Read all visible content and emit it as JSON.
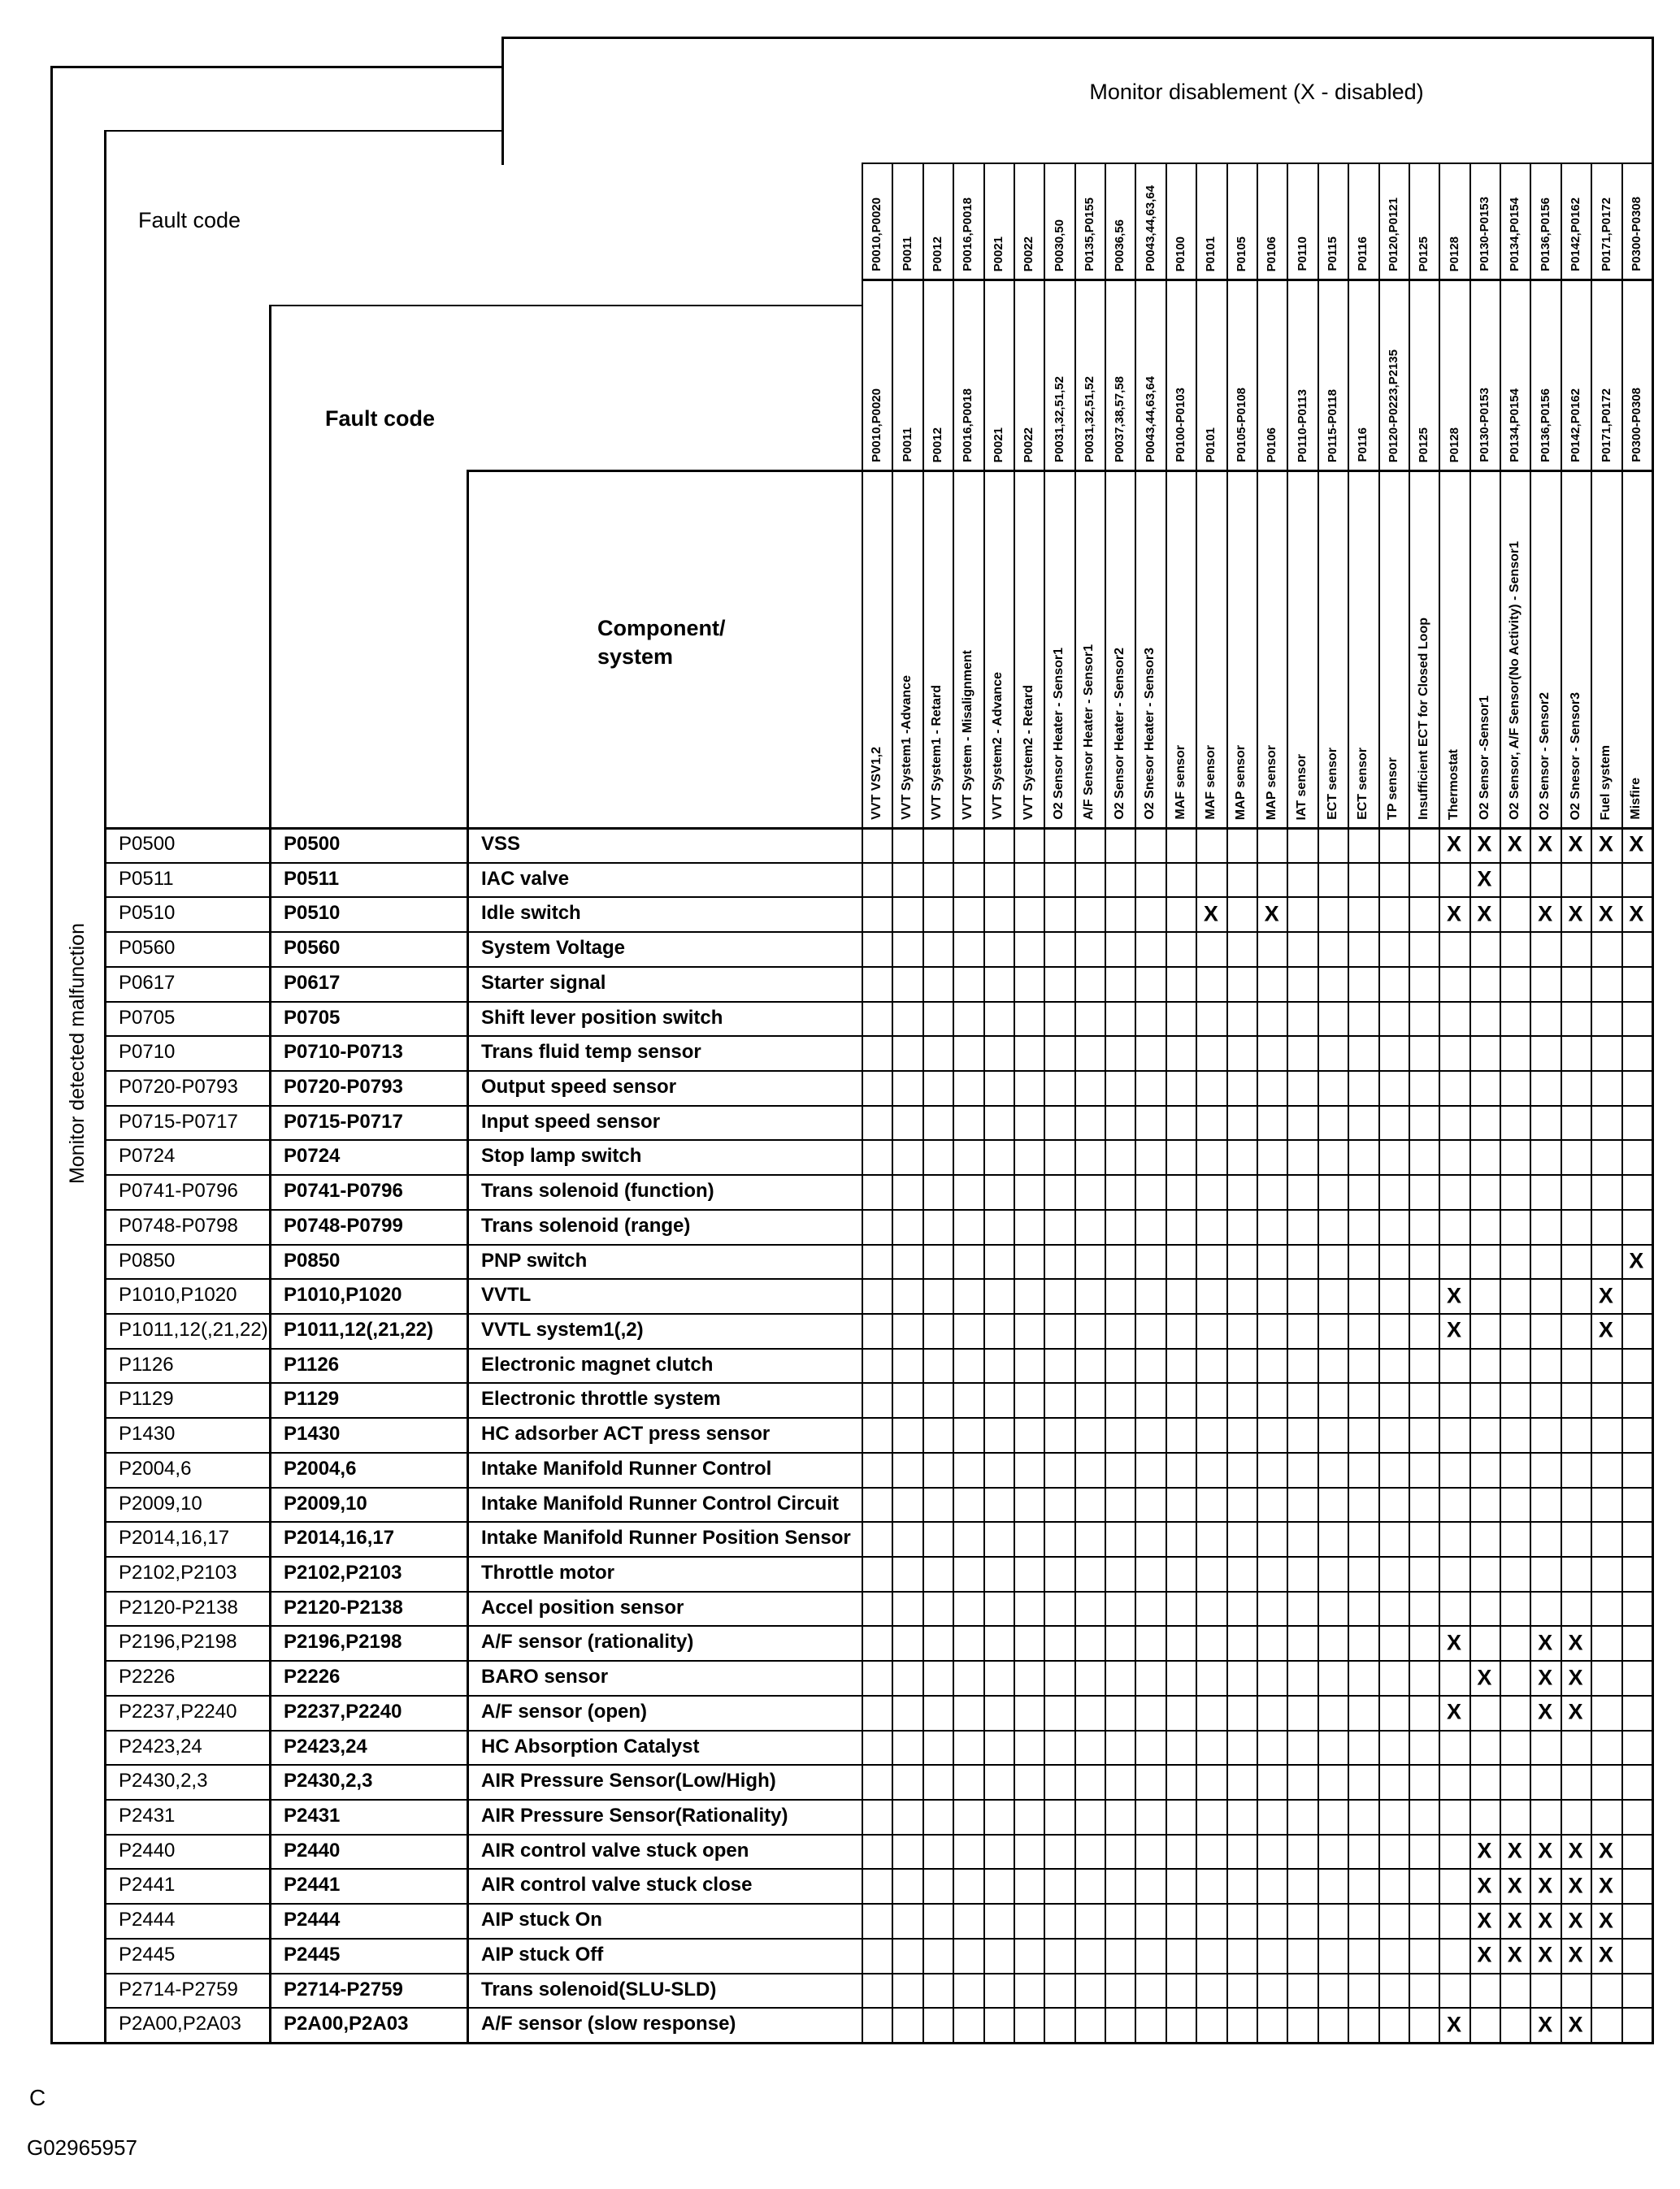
{
  "header": {
    "monitor_title": "Monitor disablement (X - disabled)",
    "fault_code_label_1": "Fault code",
    "fault_code_label_2": "Fault code",
    "component_label_line1": "Component/",
    "component_label_line2": "system",
    "side_label": "Monitor detected malfunction"
  },
  "x_symbol": "X",
  "columns": {
    "codes_row1": [
      "P0010,P0020",
      "P0011",
      "P0012",
      "P0016,P0018",
      "P0021",
      "P0022",
      "P0030,50",
      "P0135,P0155",
      "P0036,56",
      "P0043,44,63,64",
      "P0100",
      "P0101",
      "P0105",
      "P0106",
      "P0110",
      "P0115",
      "P0116",
      "P0120,P0121",
      "P0125",
      "P0128",
      "P0130-P0153",
      "P0134,P0154",
      "P0136,P0156",
      "P0142,P0162",
      "P0171,P0172",
      "P0300-P0308"
    ],
    "codes_row2": [
      "P0010,P0020",
      "P0011",
      "P0012",
      "P0016,P0018",
      "P0021",
      "P0022",
      "P0031,32,51,52",
      "P0031,32,51,52",
      "P0037,38,57,58",
      "P0043,44,63,64",
      "P0100-P0103",
      "P0101",
      "P0105-P0108",
      "P0106",
      "P0110-P0113",
      "P0115-P0118",
      "P0116",
      "P0120-P0223,P2135",
      "P0125",
      "P0128",
      "P0130-P0153",
      "P0134,P0154",
      "P0136,P0156",
      "P0142,P0162",
      "P0171,P0172",
      "P0300-P0308"
    ],
    "components": [
      "VVT VSV1,2",
      "VVT System1 -Advance",
      "VVT System1 - Retard",
      "VVT System - Misalignment",
      "VVT System2 - Advance",
      "VVT System2 - Retard",
      "O2 Sensor  Heater - Sensor1",
      "A/F Sensor Heater - Sensor1",
      "O2 Sensor Heater - Sensor2",
      "O2 Snesor Heater - Sensor3",
      "MAF sensor",
      "MAF sensor",
      "MAP sensor",
      "MAP sensor",
      "IAT sensor",
      "ECT sensor",
      "ECT sensor",
      "TP sensor",
      "Insufficient ECT for Closed Loop",
      "Thermostat",
      "O2 Sensor -Sensor1",
      "O2 Sensor, A/F Sensor(No Activity) - Sensor1",
      "O2 Sensor - Sensor2",
      "O2 Snesor - Sensor3",
      "Fuel system",
      "Misfire"
    ]
  },
  "rows": [
    {
      "code1": "P0500",
      "code2": "P0500",
      "component": "VSS",
      "x_cols": [
        20,
        21,
        22,
        23,
        24,
        25,
        26
      ]
    },
    {
      "code1": "P0511",
      "code2": "P0511",
      "component": "IAC valve",
      "x_cols": [
        21
      ]
    },
    {
      "code1": "P0510",
      "code2": "P0510",
      "component": "Idle switch",
      "x_cols": [
        12,
        14,
        20,
        21,
        23,
        24,
        25,
        26
      ]
    },
    {
      "code1": "P0560",
      "code2": "P0560",
      "component": "System Voltage",
      "x_cols": []
    },
    {
      "code1": "P0617",
      "code2": "P0617",
      "component": "Starter signal",
      "x_cols": []
    },
    {
      "code1": "P0705",
      "code2": "P0705",
      "component": "Shift lever position switch",
      "x_cols": []
    },
    {
      "code1": "P0710",
      "code2": "P0710-P0713",
      "component": "Trans fluid temp sensor",
      "x_cols": []
    },
    {
      "code1": "P0720-P0793",
      "code2": "P0720-P0793",
      "component": "Output speed sensor",
      "x_cols": []
    },
    {
      "code1": "P0715-P0717",
      "code2": "P0715-P0717",
      "component": "Input speed sensor",
      "x_cols": []
    },
    {
      "code1": "P0724",
      "code2": "P0724",
      "component": "Stop lamp switch",
      "x_cols": []
    },
    {
      "code1": "P0741-P0796",
      "code2": "P0741-P0796",
      "component": "Trans solenoid (function)",
      "x_cols": []
    },
    {
      "code1": "P0748-P0798",
      "code2": "P0748-P0799",
      "component": "Trans solenoid (range)",
      "x_cols": []
    },
    {
      "code1": "P0850",
      "code2": "P0850",
      "component": "PNP switch",
      "x_cols": [
        26
      ]
    },
    {
      "code1": "P1010,P1020",
      "code2": "P1010,P1020",
      "component": "VVTL",
      "x_cols": [
        20,
        25
      ]
    },
    {
      "code1": "P1011,12(,21,22)",
      "code2": "P1011,12(,21,22)",
      "component": "VVTL system1(,2)",
      "x_cols": [
        20,
        25
      ]
    },
    {
      "code1": "P1126",
      "code2": "P1126",
      "component": "Electronic magnet clutch",
      "x_cols": []
    },
    {
      "code1": "P1129",
      "code2": "P1129",
      "component": "Electronic throttle system",
      "x_cols": []
    },
    {
      "code1": "P1430",
      "code2": "P1430",
      "component": "HC adsorber ACT press sensor",
      "x_cols": []
    },
    {
      "code1": "P2004,6",
      "code2": "P2004,6",
      "component": "Intake Manifold Runner Control",
      "x_cols": []
    },
    {
      "code1": "P2009,10",
      "code2": "P2009,10",
      "component": "Intake Manifold Runner Control Circuit",
      "x_cols": []
    },
    {
      "code1": "P2014,16,17",
      "code2": "P2014,16,17",
      "component": "Intake Manifold Runner Position Sensor",
      "x_cols": []
    },
    {
      "code1": "P2102,P2103",
      "code2": "P2102,P2103",
      "component": "Throttle motor",
      "x_cols": []
    },
    {
      "code1": "P2120-P2138",
      "code2": "P2120-P2138",
      "component": "Accel position sensor",
      "x_cols": []
    },
    {
      "code1": "P2196,P2198",
      "code2": "P2196,P2198",
      "component": "A/F sensor (rationality)",
      "x_cols": [
        20,
        23,
        24
      ]
    },
    {
      "code1": "P2226",
      "code2": "P2226",
      "component": "BARO sensor",
      "x_cols": [
        21,
        23,
        24
      ]
    },
    {
      "code1": "P2237,P2240",
      "code2": "P2237,P2240",
      "component": "A/F sensor (open)",
      "x_cols": [
        20,
        23,
        24
      ]
    },
    {
      "code1": "P2423,24",
      "code2": "P2423,24",
      "component": "HC Absorption Catalyst",
      "x_cols": []
    },
    {
      "code1": "P2430,2,3",
      "code2": "P2430,2,3",
      "component": "AIR Pressure Sensor(Low/High)",
      "x_cols": []
    },
    {
      "code1": "P2431",
      "code2": "P2431",
      "component": "AIR Pressure Sensor(Rationality)",
      "x_cols": []
    },
    {
      "code1": "P2440",
      "code2": "P2440",
      "component": "AIR control valve stuck open",
      "x_cols": [
        21,
        22,
        23,
        24,
        25
      ]
    },
    {
      "code1": "P2441",
      "code2": "P2441",
      "component": "AIR control valve stuck close",
      "x_cols": [
        21,
        22,
        23,
        24,
        25
      ]
    },
    {
      "code1": "P2444",
      "code2": "P2444",
      "component": "AIP stuck On",
      "x_cols": [
        21,
        22,
        23,
        24,
        25
      ]
    },
    {
      "code1": "P2445",
      "code2": "P2445",
      "component": "AIP stuck Off",
      "x_cols": [
        21,
        22,
        23,
        24,
        25
      ]
    },
    {
      "code1": "P2714-P2759",
      "code2": "P2714-P2759",
      "component": "Trans solenoid(SLU-SLD)",
      "x_cols": []
    },
    {
      "code1": "P2A00,P2A03",
      "code2": "P2A00,P2A03",
      "component": "A/F sensor (slow response)",
      "x_cols": [
        20,
        23,
        24
      ]
    }
  ],
  "footer": {
    "line1": "C",
    "line2": "G02965957"
  }
}
